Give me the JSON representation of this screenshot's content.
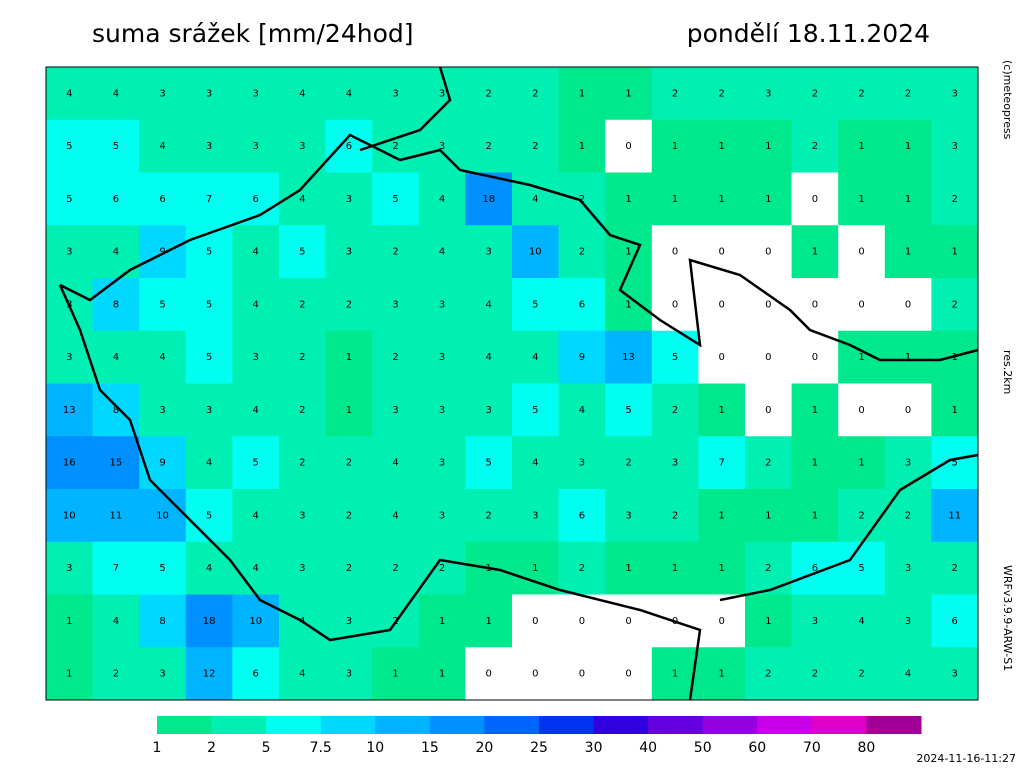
{
  "header": {
    "title": "suma srážek [mm/24hod]",
    "date": "pondělí 18.11.2024"
  },
  "side_labels": [
    "(c)meteopress",
    "res.2km",
    "WRFv3.9.9-ARW-S1"
  ],
  "timestamp": "2024-11-16-11:27",
  "legend": {
    "thresholds": [
      1,
      2,
      5,
      7.5,
      10,
      15,
      20,
      25,
      30,
      40,
      50,
      60,
      70,
      80
    ],
    "colors": [
      "#00e88c",
      "#00f0b4",
      "#00fff0",
      "#00d8ff",
      "#00b4ff",
      "#0090ff",
      "#0064ff",
      "#0034f0",
      "#3000e0",
      "#6400e0",
      "#9600e0",
      "#c800e8",
      "#e000c8",
      "#a00096"
    ]
  },
  "grid": {
    "values": [
      [
        4,
        4,
        3,
        3,
        3,
        4,
        4,
        3,
        3,
        2,
        2,
        1,
        1,
        2,
        2,
        3,
        2,
        2,
        2,
        3
      ],
      [
        5,
        5,
        4,
        3,
        3,
        3,
        6,
        2,
        3,
        2,
        2,
        1,
        0,
        1,
        1,
        1,
        2,
        1,
        1,
        3
      ],
      [
        5,
        6,
        6,
        7,
        6,
        4,
        3,
        5,
        4,
        18,
        4,
        2,
        1,
        1,
        1,
        1,
        0,
        1,
        1,
        2
      ],
      [
        3,
        4,
        9,
        5,
        4,
        5,
        3,
        2,
        4,
        3,
        10,
        2,
        1,
        0,
        0,
        0,
        1,
        0,
        1,
        1
      ],
      [
        3,
        8,
        5,
        5,
        4,
        2,
        2,
        3,
        3,
        4,
        5,
        6,
        1,
        0,
        0,
        0,
        0,
        0,
        0,
        2
      ],
      [
        3,
        4,
        4,
        5,
        3,
        2,
        1,
        2,
        3,
        4,
        4,
        9,
        13,
        5,
        0,
        0,
        0,
        1,
        1,
        1
      ],
      [
        13,
        8,
        3,
        3,
        4,
        2,
        1,
        3,
        3,
        3,
        5,
        4,
        5,
        2,
        1,
        0,
        1,
        0,
        0,
        1
      ],
      [
        16,
        15,
        9,
        4,
        5,
        2,
        2,
        4,
        3,
        5,
        4,
        3,
        2,
        3,
        7,
        2,
        1,
        1,
        3,
        5
      ],
      [
        10,
        11,
        10,
        5,
        4,
        3,
        2,
        4,
        3,
        2,
        3,
        6,
        3,
        2,
        1,
        1,
        1,
        2,
        2,
        11
      ],
      [
        3,
        7,
        5,
        4,
        4,
        3,
        2,
        2,
        2,
        1,
        1,
        2,
        1,
        1,
        1,
        2,
        6,
        5,
        3,
        2
      ],
      [
        1,
        4,
        8,
        18,
        10,
        4,
        3,
        2,
        1,
        1,
        0,
        0,
        0,
        0,
        0,
        1,
        3,
        4,
        3,
        6
      ],
      [
        1,
        2,
        3,
        12,
        6,
        4,
        3,
        1,
        1,
        0,
        0,
        0,
        0,
        1,
        1,
        2,
        2,
        2,
        4,
        3
      ]
    ]
  }
}
